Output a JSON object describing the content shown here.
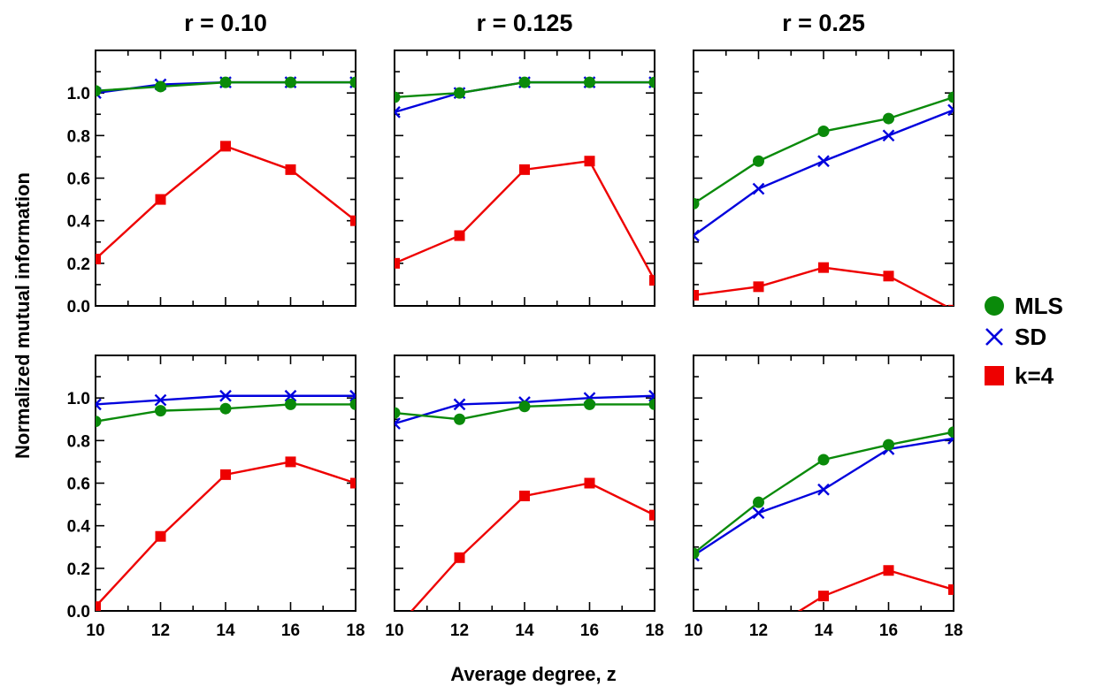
{
  "chart_data": {
    "type": "line",
    "ylabel": "Normalized mutual information",
    "xlabel": "Average degree, z",
    "xlim": [
      10,
      18
    ],
    "ylim": [
      0,
      1.2
    ],
    "x": [
      10,
      12,
      14,
      16,
      18
    ],
    "xticks": [
      "10",
      "12",
      "14",
      "16",
      "18"
    ],
    "yticks": [
      "0.0",
      "0.2",
      "0.4",
      "0.6",
      "0.8",
      "1.0"
    ],
    "column_titles": [
      "r = 0.10",
      "r = 0.125",
      "r = 0.25"
    ],
    "legend": {
      "placement": "right",
      "entries": [
        {
          "label": "MLS",
          "color": "#0a8a0a",
          "marker": "circle"
        },
        {
          "label": "SD",
          "color": "#0000dd",
          "marker": "x"
        },
        {
          "label": "k=4",
          "color": "#ee0000",
          "marker": "square"
        }
      ]
    },
    "panels": [
      {
        "row": 1,
        "column_title": "r = 0.10",
        "series": [
          {
            "name": "MLS",
            "values": [
              1.01,
              1.03,
              1.05,
              1.05,
              1.05
            ]
          },
          {
            "name": "SD",
            "values": [
              1.0,
              1.04,
              1.05,
              1.05,
              1.05
            ]
          },
          {
            "name": "k=4",
            "values": [
              0.22,
              0.5,
              0.75,
              0.64,
              0.4
            ]
          }
        ]
      },
      {
        "row": 1,
        "column_title": "r = 0.125",
        "series": [
          {
            "name": "MLS",
            "values": [
              0.98,
              1.0,
              1.05,
              1.05,
              1.05
            ]
          },
          {
            "name": "SD",
            "values": [
              0.91,
              1.0,
              1.05,
              1.05,
              1.05
            ]
          },
          {
            "name": "k=4",
            "values": [
              0.2,
              0.33,
              0.64,
              0.68,
              0.12
            ]
          }
        ]
      },
      {
        "row": 1,
        "column_title": "r = 0.25",
        "series": [
          {
            "name": "MLS",
            "values": [
              0.48,
              0.68,
              0.82,
              0.88,
              0.98
            ]
          },
          {
            "name": "SD",
            "values": [
              0.33,
              0.55,
              0.68,
              0.8,
              0.92
            ]
          },
          {
            "name": "k=4",
            "values": [
              0.05,
              0.09,
              0.18,
              0.14,
              -0.02
            ]
          }
        ]
      },
      {
        "row": 2,
        "column_title": "r = 0.10",
        "series": [
          {
            "name": "MLS",
            "values": [
              0.89,
              0.94,
              0.95,
              0.97,
              0.97
            ]
          },
          {
            "name": "SD",
            "values": [
              0.97,
              0.99,
              1.01,
              1.01,
              1.01
            ]
          },
          {
            "name": "k=4",
            "values": [
              0.02,
              0.35,
              0.64,
              0.7,
              0.6
            ]
          }
        ]
      },
      {
        "row": 2,
        "column_title": "r = 0.125",
        "series": [
          {
            "name": "MLS",
            "values": [
              0.93,
              0.9,
              0.96,
              0.97,
              0.97
            ]
          },
          {
            "name": "SD",
            "values": [
              0.88,
              0.97,
              0.98,
              1.0,
              1.01
            ]
          },
          {
            "name": "k=4",
            "values": [
              -0.09,
              0.25,
              0.54,
              0.6,
              0.45
            ]
          }
        ]
      },
      {
        "row": 2,
        "column_title": "r = 0.25",
        "series": [
          {
            "name": "MLS",
            "values": [
              0.27,
              0.51,
              0.71,
              0.78,
              0.84
            ]
          },
          {
            "name": "SD",
            "values": [
              0.26,
              0.46,
              0.57,
              0.76,
              0.81
            ]
          },
          {
            "name": "k=4",
            "values": [
              -0.1,
              -0.12,
              0.07,
              0.19,
              0.1
            ]
          }
        ]
      }
    ],
    "grid": false
  }
}
